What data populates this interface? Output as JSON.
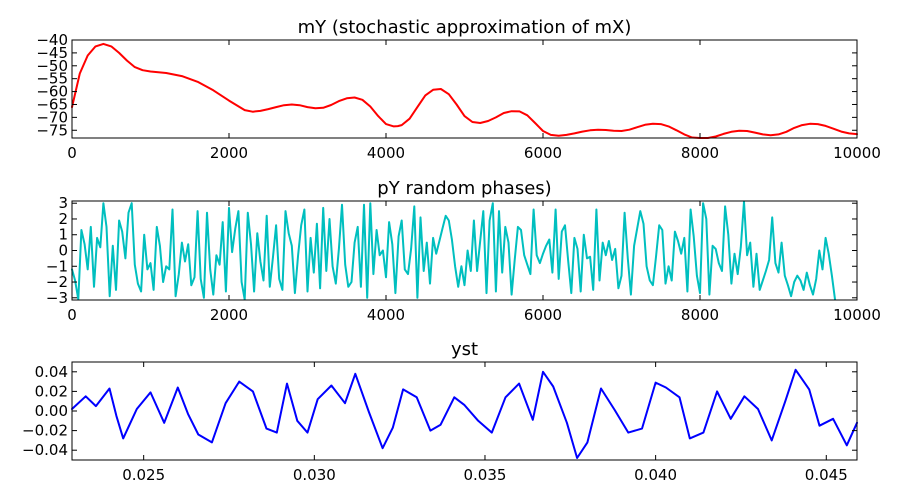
{
  "chart_data": [
    {
      "type": "line",
      "title": "mY (stochastic approximation of mX)",
      "xlim": [
        0,
        10000
      ],
      "ylim": [
        -78,
        -40
      ],
      "x_ticks": [
        0,
        2000,
        4000,
        6000,
        8000,
        10000
      ],
      "x_tick_labels": [
        "0",
        "2000",
        "4000",
        "6000",
        "8000",
        "10000"
      ],
      "y_ticks": [
        -40,
        -45,
        -50,
        -55,
        -60,
        -65,
        -70,
        -75
      ],
      "y_tick_labels": [
        "−40",
        "−45",
        "−50",
        "−55",
        "−60",
        "−65",
        "−70",
        "−75"
      ],
      "color": "#ff0000",
      "series": [
        {
          "x": [
            0,
            100,
            200,
            300,
            400,
            500,
            600,
            700,
            800,
            900,
            1000,
            1200,
            1400,
            1600,
            1800,
            2000,
            2200,
            2300,
            2400,
            2500,
            2600,
            2700,
            2800,
            2900,
            3000,
            3100,
            3200,
            3300,
            3400,
            3500,
            3600,
            3700,
            3800,
            3900,
            4000,
            4100,
            4150,
            4200,
            4300,
            4400,
            4500,
            4600,
            4700,
            4800,
            4900,
            5000,
            5100,
            5200,
            5300,
            5400,
            5500,
            5600,
            5700,
            5800,
            5900,
            6000,
            6100,
            6200,
            6300,
            6400,
            6500,
            6600,
            6700,
            6800,
            6900,
            7000,
            7100,
            7200,
            7300,
            7400,
            7500,
            7600,
            7700,
            7800,
            7900,
            8000,
            8100,
            8200,
            8300,
            8400,
            8500,
            8600,
            8700,
            8800,
            8900,
            9000,
            9100,
            9200,
            9300,
            9400,
            9500,
            9600,
            9700,
            9800,
            9900,
            10000
          ],
          "y": [
            -66,
            -53,
            -46,
            -42.5,
            -41.5,
            -42.5,
            -45,
            -48,
            -50.5,
            -51.7,
            -52.2,
            -52.8,
            -54,
            -56.2,
            -59.5,
            -63.5,
            -67.2,
            -67.8,
            -67.5,
            -66.8,
            -66,
            -65.3,
            -65,
            -65.3,
            -66,
            -66.5,
            -66.3,
            -65.2,
            -63.7,
            -62.6,
            -62.3,
            -63.2,
            -65.8,
            -69.5,
            -72.6,
            -73.5,
            -73.4,
            -73,
            -70.5,
            -66,
            -61.5,
            -59.3,
            -59,
            -61,
            -65,
            -69.5,
            -71.8,
            -72.2,
            -71.4,
            -70,
            -68.3,
            -67.6,
            -67.7,
            -69.2,
            -72.2,
            -75.3,
            -76.8,
            -77.1,
            -76.8,
            -76.2,
            -75.5,
            -75,
            -74.8,
            -74.9,
            -75.2,
            -75.3,
            -74.8,
            -73.8,
            -72.9,
            -72.5,
            -72.6,
            -73.5,
            -75,
            -76.6,
            -77.8,
            -78.2,
            -78,
            -77.4,
            -76.4,
            -75.6,
            -75.2,
            -75.3,
            -75.9,
            -76.6,
            -76.9,
            -76.6,
            -75.6,
            -74.1,
            -73,
            -72.5,
            -72.6,
            -73.3,
            -74.4,
            -75.5,
            -76.2,
            -76.5
          ]
        }
      ]
    },
    {
      "type": "line",
      "title": "pY random phases)",
      "xlim": [
        0,
        10000
      ],
      "ylim": [
        -3.14,
        3.14
      ],
      "x_ticks": [
        0,
        2000,
        4000,
        6000,
        8000,
        10000
      ],
      "x_tick_labels": [
        "0",
        "2000",
        "4000",
        "6000",
        "8000",
        "10000"
      ],
      "y_ticks": [
        3,
        2,
        1,
        0,
        -1,
        -2,
        -3
      ],
      "y_tick_labels": [
        "3",
        "2",
        "1",
        "0",
        "−1",
        "−2",
        "−3"
      ],
      "color": "#00bfbf",
      "series": [
        {
          "x_start": 0,
          "x_step": 40,
          "y": [
            -1.2,
            -1.9,
            -3.1,
            1.3,
            0.4,
            -1.2,
            1.5,
            -2.3,
            0.8,
            0.2,
            3.0,
            1.5,
            -2.9,
            0.3,
            -2.5,
            1.9,
            1.2,
            -0.5,
            2.4,
            3.0,
            -0.9,
            -2.1,
            -2.6,
            1.0,
            -1.2,
            -0.8,
            -2.5,
            1.5,
            0.3,
            -2.0,
            -1.0,
            -1.2,
            2.6,
            -2.9,
            -1.5,
            0.5,
            -0.7,
            0.4,
            -2.2,
            -1.7,
            2.5,
            -1.8,
            -3.0,
            2.4,
            -1.2,
            -2.8,
            -0.3,
            -0.9,
            1.8,
            -2.6,
            2.7,
            -0.1,
            1.4,
            2.5,
            -2.0,
            -3.1,
            2.4,
            0.4,
            -2.6,
            1.1,
            -0.7,
            -1.9,
            2.2,
            -2.3,
            -0.4,
            1.6,
            -1.8,
            -2.5,
            2.5,
            1.1,
            0.3,
            -2.7,
            -0.3,
            1.6,
            2.6,
            -2.6,
            0.8,
            -1.4,
            1.7,
            -2.4,
            2.7,
            -1.3,
            2.0,
            -1.0,
            -2.1,
            0.1,
            2.9,
            -0.9,
            -2.3,
            -2.0,
            0.5,
            1.5,
            -2.3,
            2.9,
            -3.0,
            3.0,
            -1.5,
            1.3,
            -0.3,
            0.0,
            -1.7,
            1.8,
            0.4,
            -2.7,
            0.9,
            1.9,
            -1.2,
            -1.5,
            0.1,
            2.8,
            -3.0,
            2.1,
            -1.3,
            0.5,
            -2.1,
            0.8,
            -0.2,
            0.6,
            1.4,
            2.2,
            1.9,
            0.7,
            -1.0,
            -2.3,
            -1.0,
            -2.2,
            0.0,
            -1.3,
            1.9,
            -1.3,
            0.6,
            2.5,
            -2.7,
            1.9,
            3.0,
            -2.6,
            2.5,
            -1.4,
            1.5,
            0.5,
            -2.8,
            -0.6,
            1.5,
            1.3,
            -0.3,
            -0.9,
            -1.5,
            2.6,
            -0.3,
            -0.8,
            -0.2,
            0.3,
            0.7,
            -1.4,
            2.6,
            -1.8,
            1.2,
            1.6,
            -0.6,
            -2.7,
            0.8,
            0.1,
            -2.6,
            1.0,
            -0.5,
            -0.4,
            -2.5,
            2.6,
            -1.9,
            0.5,
            -0.3,
            0.6,
            -0.6,
            0.1,
            -2.4,
            -1.6,
            2.4,
            -0.5,
            -2.8,
            0.3,
            1.4,
            2.5,
            1.7,
            -1.0,
            -1.9,
            -2.2,
            -0.4,
            1.6,
            1.3,
            -2.1,
            -1.0,
            -1.9,
            1.2,
            0.6,
            -0.2,
            0.8,
            -2.6,
            2.6,
            0.9,
            -1.6,
            -2.7,
            3.0,
            2.0,
            -2.8,
            0.3,
            0.1,
            -0.8,
            -1.3,
            2.8,
            1.0,
            -2.1,
            -0.2,
            -1.5,
            0.2,
            3.1,
            -0.3,
            0.5,
            -2.3,
            -0.2,
            -2.5,
            -1.9,
            -1.3,
            -0.6,
            2.1,
            -0.8,
            -1.4,
            0.5,
            -1.6,
            -2.2,
            -2.9,
            -2.0,
            -1.6,
            -1.9,
            -2.5,
            -1.4,
            -2.2,
            -2.8,
            -1.8,
            0.0,
            -1.2,
            0.8,
            -0.2,
            -1.6,
            -3.1
          ]
        }
      ]
    },
    {
      "type": "line",
      "title": "yst",
      "xlim": [
        0.0229,
        0.0459
      ],
      "ylim": [
        -0.05,
        0.05
      ],
      "x_ticks": [
        0.025,
        0.03,
        0.035,
        0.04,
        0.045
      ],
      "x_tick_labels": [
        "0.025",
        "0.030",
        "0.035",
        "0.040",
        "0.045"
      ],
      "y_ticks": [
        0.04,
        0.02,
        0.0,
        -0.02,
        -0.04
      ],
      "y_tick_labels": [
        "0.04",
        "0.02",
        "0.00",
        "−0.02",
        "−0.04"
      ],
      "color": "#0000ff",
      "series": [
        {
          "x": [
            0.0229,
            0.0233,
            0.0236,
            0.024,
            0.0242,
            0.0244,
            0.0248,
            0.0252,
            0.0256,
            0.026,
            0.0263,
            0.0266,
            0.027,
            0.0274,
            0.0278,
            0.0282,
            0.0286,
            0.0289,
            0.0292,
            0.0295,
            0.0298,
            0.0301,
            0.0305,
            0.0309,
            0.0312,
            0.0316,
            0.032,
            0.0323,
            0.0326,
            0.033,
            0.0334,
            0.0337,
            0.0341,
            0.0344,
            0.0348,
            0.0352,
            0.0356,
            0.036,
            0.0364,
            0.0367,
            0.037,
            0.0374,
            0.0377,
            0.038,
            0.0384,
            0.0388,
            0.0392,
            0.0396,
            0.04,
            0.0403,
            0.0407,
            0.041,
            0.0414,
            0.0418,
            0.0422,
            0.0426,
            0.043,
            0.0434,
            0.0438,
            0.0441,
            0.0445,
            0.0448,
            0.0452,
            0.0456,
            0.0459
          ],
          "y": [
            0.002,
            0.015,
            0.005,
            0.023,
            -0.005,
            -0.028,
            0.002,
            0.019,
            -0.012,
            0.024,
            -0.003,
            -0.024,
            -0.032,
            0.008,
            0.03,
            0.02,
            -0.018,
            -0.022,
            0.028,
            -0.01,
            -0.022,
            0.012,
            0.026,
            0.008,
            0.038,
            -0.001,
            -0.038,
            -0.017,
            0.022,
            0.014,
            -0.02,
            -0.014,
            0.014,
            0.006,
            -0.01,
            -0.022,
            0.014,
            0.028,
            -0.009,
            0.04,
            0.025,
            -0.012,
            -0.048,
            -0.032,
            0.023,
            0.001,
            -0.022,
            -0.018,
            0.029,
            0.024,
            0.014,
            -0.028,
            -0.022,
            0.02,
            -0.008,
            0.015,
            0.002,
            -0.03,
            0.01,
            0.042,
            0.022,
            -0.015,
            -0.008,
            -0.035,
            -0.012
          ]
        }
      ]
    }
  ]
}
